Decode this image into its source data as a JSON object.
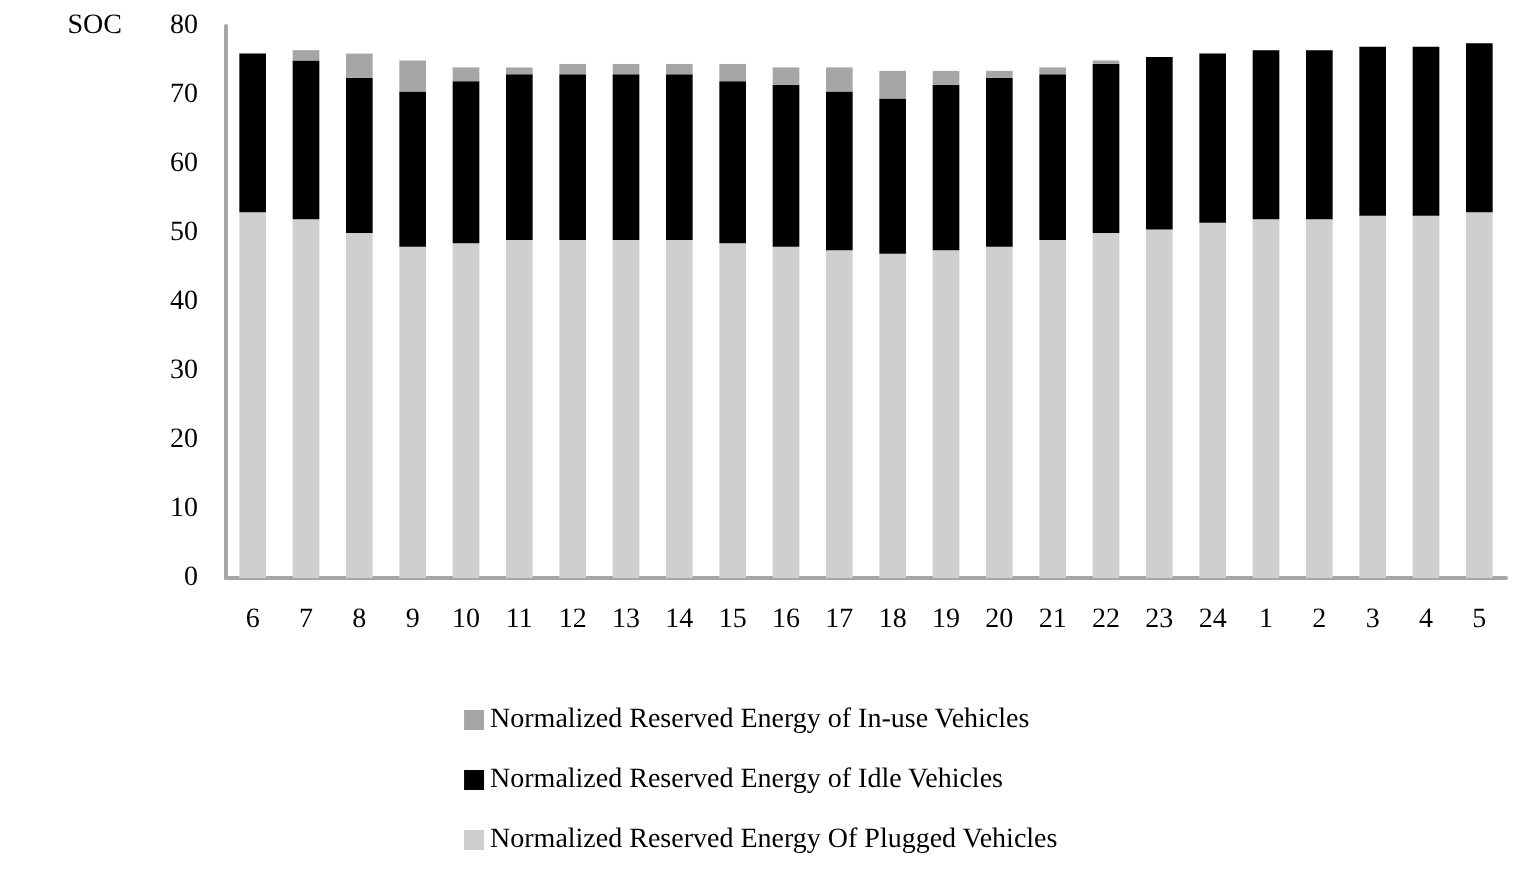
{
  "chart_data": {
    "type": "bar",
    "stacked": true,
    "ylabel": "SOC",
    "categories": [
      "6",
      "7",
      "8",
      "9",
      "10",
      "11",
      "12",
      "13",
      "14",
      "15",
      "16",
      "17",
      "18",
      "19",
      "20",
      "21",
      "22",
      "23",
      "24",
      "1",
      "2",
      "3",
      "4",
      "5"
    ],
    "series": [
      {
        "name": "Normalized Reserved Energy Of Plugged Vehicles",
        "color": "#cfcfcf",
        "values": [
          53,
          52,
          50,
          48,
          48.5,
          49,
          49,
          49,
          49,
          48.5,
          48,
          47.5,
          47,
          47.5,
          48,
          49,
          50,
          50.5,
          51.5,
          52,
          52,
          52.5,
          52.5,
          53
        ]
      },
      {
        "name": "Normalized Reserved Energy of Idle Vehicles",
        "color": "#000000",
        "values": [
          23,
          23,
          22.5,
          22.5,
          23.5,
          24,
          24,
          24,
          24,
          23.5,
          23.5,
          23,
          22.5,
          24,
          24.5,
          24,
          24.5,
          25,
          24.5,
          24.5,
          24.5,
          24.5,
          24.5,
          24.5
        ]
      },
      {
        "name": "Normalized Reserved Energy of In-use Vehicles",
        "color": "#a6a6a6",
        "values": [
          0,
          1.5,
          3.5,
          4.5,
          2,
          1,
          1.5,
          1.5,
          1.5,
          2.5,
          2.5,
          3.5,
          4,
          2,
          1,
          1,
          0.5,
          0,
          0,
          0,
          0,
          0,
          0,
          0
        ]
      }
    ],
    "ylim": [
      0,
      80
    ],
    "yticks": [
      0,
      10,
      20,
      30,
      40,
      50,
      60,
      70,
      80
    ],
    "grid": false,
    "legend": "bottom"
  }
}
